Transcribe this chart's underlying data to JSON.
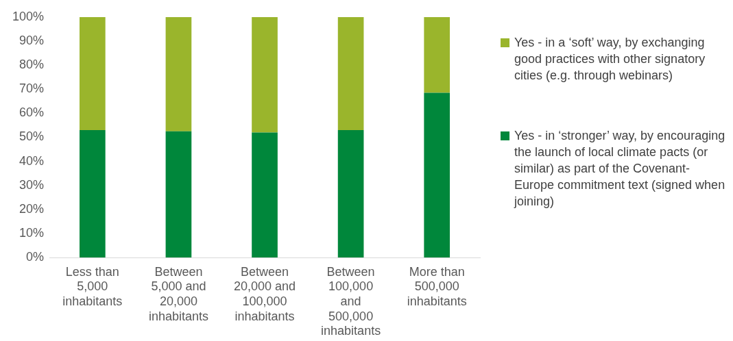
{
  "chart_data": {
    "type": "bar",
    "stacked": true,
    "categories": [
      "Less than 5,000 inhabitants",
      "Between 5,000 and 20,000 inhabitants",
      "Between 20,000 and 100,000 inhabitants",
      "Between 100,000 and 500,000 inhabitants",
      "More than 500,000 inhabitants"
    ],
    "series": [
      {
        "name": "Yes - in ‘stronger’ way, by encouraging the launch of local climate pacts (or similar) as part of the Covenant-Europe commitment text (signed when joining)",
        "color": "#00873b",
        "values": [
          53,
          52.5,
          52,
          53,
          68.5
        ]
      },
      {
        "name": "Yes - in a ‘soft’ way, by exchanging good practices with other signatory cities (e.g. through webinars)",
        "color": "#9ab52c",
        "values": [
          47,
          47.5,
          48,
          47,
          31.5
        ]
      }
    ],
    "ylim": [
      0,
      100
    ],
    "yticks": [
      {
        "value": 0,
        "label": "0%"
      },
      {
        "value": 10,
        "label": "10%"
      },
      {
        "value": 20,
        "label": "20%"
      },
      {
        "value": 30,
        "label": "30%"
      },
      {
        "value": 40,
        "label": "40%"
      },
      {
        "value": 50,
        "label": "50%"
      },
      {
        "value": 60,
        "label": "60%"
      },
      {
        "value": 70,
        "label": "70%"
      },
      {
        "value": 80,
        "label": "80%"
      },
      {
        "value": 90,
        "label": "90%"
      },
      {
        "value": 100,
        "label": "100%"
      }
    ],
    "grid": false,
    "legend": "right"
  }
}
